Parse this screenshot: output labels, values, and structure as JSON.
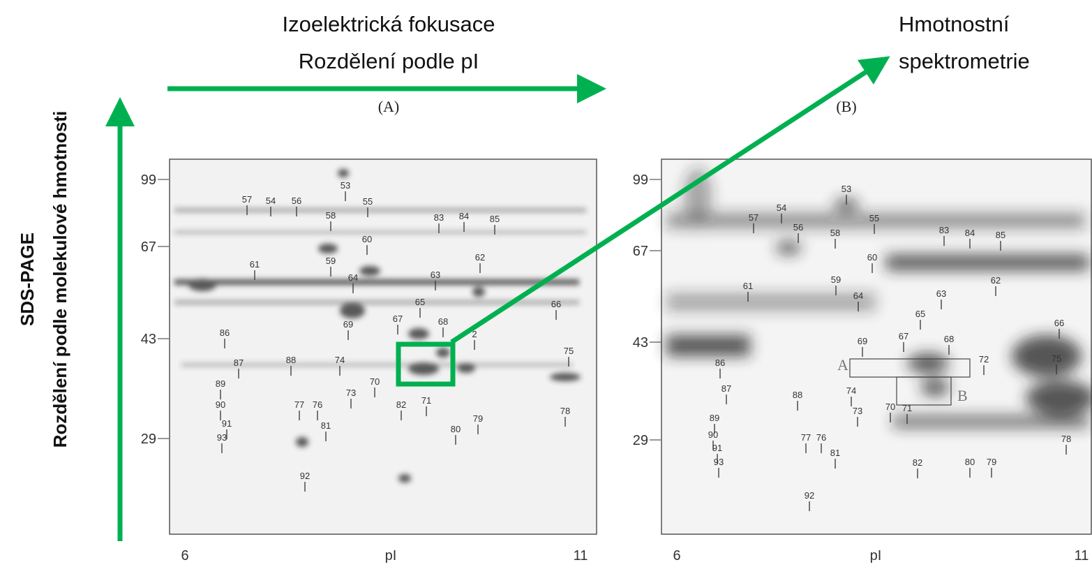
{
  "titles": {
    "ief_line1": "Izoelektrická fokusace",
    "ief_line2": "Rozdělení podle pI",
    "ms_line1": "Hmotnostní",
    "ms_line2": "spektrometrie",
    "sds_line1": "SDS-PAGE",
    "sds_line2": "Rozdělení podle molekulové hmotnosti"
  },
  "panels": [
    {
      "label": "(A)",
      "y_ticks": [
        "99",
        "67",
        "43",
        "29"
      ],
      "x_ticks": [
        "6",
        "pI",
        "11"
      ],
      "spots": [
        "53",
        "54",
        "57",
        "56",
        "55",
        "58",
        "83",
        "84",
        "85",
        "60",
        "61",
        "59",
        "62",
        "64",
        "63",
        "65",
        "66",
        "68",
        "69",
        "67",
        "2",
        "86",
        "88",
        "74",
        "87",
        "75",
        "70",
        "73",
        "71",
        "89",
        "77",
        "76",
        "82",
        "79",
        "78",
        "90",
        "81",
        "80",
        "91",
        "93",
        "92"
      ]
    },
    {
      "label": "(B)",
      "y_ticks": [
        "99",
        "67",
        "43",
        "29"
      ],
      "x_ticks": [
        "6",
        "pI",
        "11"
      ],
      "spots": [
        "53",
        "54",
        "57",
        "56",
        "55",
        "58",
        "83",
        "84",
        "85",
        "60",
        "59",
        "61",
        "62",
        "63",
        "64",
        "65",
        "66",
        "69",
        "67",
        "68",
        "72",
        "75",
        "86",
        "87",
        "74",
        "88",
        "73",
        "70",
        "71",
        "89",
        "77",
        "76",
        "90",
        "91",
        "81",
        "82",
        "80",
        "79",
        "78",
        "93",
        "92"
      ],
      "boxes": [
        "A",
        "B"
      ]
    }
  ]
}
